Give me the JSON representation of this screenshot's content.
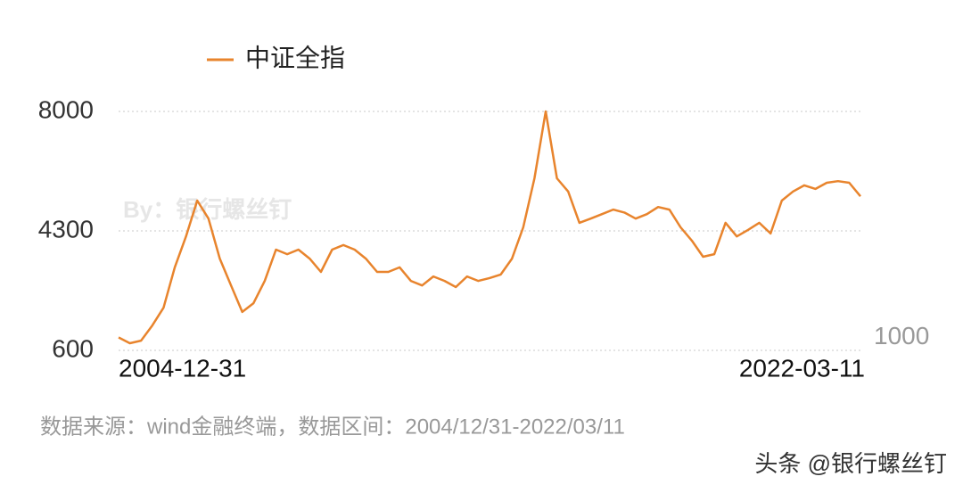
{
  "chart_data": {
    "type": "line",
    "legend_label": "中证全指",
    "watermark": "By：银行螺丝钉",
    "source": "数据来源：wind金融终端，数据区间：2004/12/31-2022/03/11",
    "footer": "头条 @银行螺丝钉",
    "categories": [
      "2004-12-31",
      null,
      null,
      null,
      null,
      null,
      null,
      null,
      null,
      null,
      null,
      null,
      null,
      null,
      null,
      null,
      null,
      null,
      null,
      null,
      null,
      null,
      null,
      null,
      null,
      null,
      null,
      null,
      null,
      null,
      null,
      null,
      null,
      null,
      null,
      null,
      null,
      null,
      null,
      null,
      null,
      null,
      null,
      null,
      null,
      null,
      null,
      null,
      null,
      null,
      null,
      null,
      null,
      null,
      null,
      null,
      null,
      null,
      null,
      null,
      null,
      null,
      null,
      null,
      null,
      null,
      "2022-03-11"
    ],
    "series": [
      {
        "name": "中证全指",
        "color": "#e8842d",
        "values": [
          1000,
          820,
          900,
          1370,
          1920,
          3170,
          4130,
          5240,
          4680,
          3440,
          2610,
          1790,
          2060,
          2750,
          3720,
          3580,
          3720,
          3440,
          3030,
          3720,
          3860,
          3720,
          3440,
          3030,
          3030,
          3170,
          2750,
          2610,
          2890,
          2750,
          2560,
          2890,
          2750,
          2840,
          2950,
          3440,
          4410,
          5930,
          8000,
          5930,
          5520,
          4550,
          4680,
          4820,
          4960,
          4870,
          4680,
          4820,
          5040,
          4960,
          4410,
          4000,
          3500,
          3580,
          4550,
          4130,
          4330,
          4550,
          4220,
          5240,
          5520,
          5710,
          5600,
          5790,
          5840,
          5790,
          5370
        ]
      }
    ],
    "ylim": [
      600,
      8000
    ],
    "yticks": [
      600,
      4300,
      8000
    ],
    "y2lim": [
      600,
      8000
    ],
    "y2ticks": [
      1000
    ],
    "grid": true
  }
}
